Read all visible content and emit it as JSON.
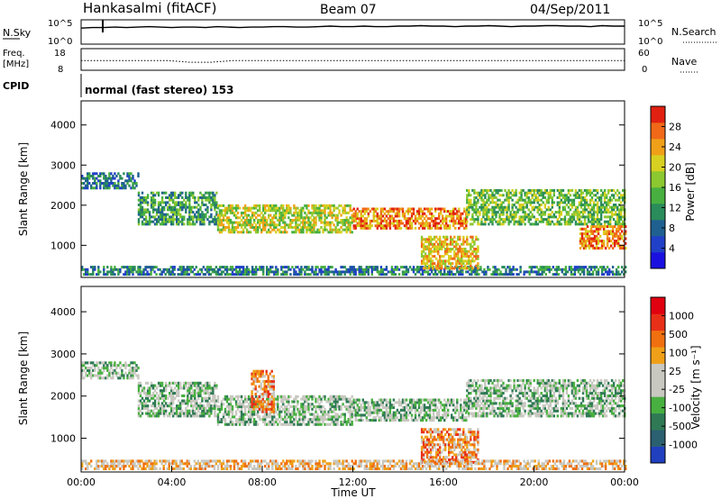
{
  "header": {
    "station": "Hankasalmi (fitACF)",
    "beam": "Beam 07",
    "date": "04/Sep/2011"
  },
  "left_labels": {
    "nsky": "N.Sky",
    "freq_line1": "Freq.",
    "freq_line2": "[MHz]",
    "cpid": "CPID"
  },
  "right_labels": {
    "nsearch": "N.Search",
    "nave": "Nave"
  },
  "cpid_text": "normal (fast stereo) 153",
  "chart_data": [
    {
      "type": "line",
      "panel": "noise",
      "yticks_left": [
        "10^5",
        "10^0"
      ],
      "yticks_right": [
        "10^5",
        "10^0"
      ],
      "series": [
        {
          "values": [
            3.3,
            3.4,
            3.4,
            3.5,
            3.4,
            3.5,
            3.6,
            3.5,
            3.4,
            3.5,
            3.5,
            3.4,
            3.6,
            3.5,
            3.4,
            3.5,
            3.5,
            3.6,
            3.6,
            3.5,
            3.5,
            3.6,
            3.7,
            3.6,
            3.6,
            3.7,
            3.6,
            3.6,
            3.7,
            3.7,
            3.8,
            3.7,
            3.7,
            3.6,
            3.7,
            3.7,
            3.8,
            3.7,
            3.6,
            3.7,
            3.7,
            3.8,
            3.8,
            3.7,
            3.7,
            3.6,
            3.8,
            3.7,
            3.7
          ]
        }
      ],
      "xlim": [
        0,
        24
      ]
    },
    {
      "type": "line",
      "panel": "frequency",
      "yticks_left": [
        "18",
        "8"
      ],
      "yticks_right": [
        "60",
        "0"
      ],
      "ylim_left": [
        8,
        18
      ],
      "ylim_right": [
        0,
        60
      ],
      "series": [
        {
          "values": [
            12.5,
            12.5,
            12.5,
            12.5,
            12.5,
            11.7,
            11.7,
            12.5,
            12.5,
            12.5,
            12.5,
            12.5,
            12.5,
            12.5,
            12.5,
            12.5,
            12.5,
            12.5,
            12.5,
            12.5,
            12.5,
            12.5,
            12.5,
            12.5,
            12.5,
            12.5
          ]
        }
      ],
      "xlim": [
        0,
        24
      ]
    },
    {
      "type": "heatmap",
      "panel": "power",
      "ylabel": "Slant Range [km]",
      "yticks": [
        "1000",
        "2000",
        "3000",
        "4000"
      ],
      "ylim": [
        200,
        4600
      ],
      "xlim": [
        0,
        24
      ],
      "colorbar": {
        "label": "Power [dB]",
        "ticks": [
          "28",
          "24",
          "20",
          "16",
          "12",
          "8",
          "4"
        ],
        "colors": [
          "#1a10e0",
          "#2040c8",
          "#1f6090",
          "#2a8c5a",
          "#48b040",
          "#8cc830",
          "#d8d020",
          "#f0a018",
          "#f06818",
          "#e02010"
        ]
      },
      "bands": [
        {
          "t": [
            0.0,
            2.5
          ],
          "r": [
            2400,
            2800
          ],
          "level": 3
        },
        {
          "t": [
            2.5,
            6.0
          ],
          "r": [
            1500,
            2300
          ],
          "level": 4
        },
        {
          "t": [
            6.0,
            12.0
          ],
          "r": [
            1300,
            2000
          ],
          "level": 6
        },
        {
          "t": [
            12.0,
            17.0
          ],
          "r": [
            1400,
            1900
          ],
          "level": 8
        },
        {
          "t": [
            17.0,
            24.0
          ],
          "r": [
            1500,
            2400
          ],
          "level": 5
        },
        {
          "t": [
            0.0,
            24.0
          ],
          "r": [
            250,
            450
          ],
          "level": 3
        },
        {
          "t": [
            15.0,
            17.5
          ],
          "r": [
            400,
            1200
          ],
          "level": 7
        },
        {
          "t": [
            22.0,
            24.0
          ],
          "r": [
            900,
            1500
          ],
          "level": 8
        }
      ]
    },
    {
      "type": "heatmap",
      "panel": "velocity",
      "ylabel": "Slant Range [km]",
      "yticks": [
        "1000",
        "2000",
        "3000",
        "4000"
      ],
      "ylim": [
        200,
        4600
      ],
      "xlim": [
        0,
        24
      ],
      "xticks": [
        "00:00",
        "04:00",
        "08:00",
        "12:00",
        "16:00",
        "20:00",
        "00:00"
      ],
      "xlabel": "Time UT",
      "colorbar": {
        "label": "Velocity [m s⁻¹]",
        "ticks": [
          "1000",
          "500",
          "100",
          "25",
          "-25",
          "-100",
          "-500",
          "-1000"
        ],
        "colors": [
          "#2040c0",
          "#2a6070",
          "#2f7a55",
          "#48b040",
          "#c8c8c0",
          "#c8c8c0",
          "#f0a018",
          "#f07010",
          "#e83018",
          "#e00010"
        ]
      },
      "bands": [
        {
          "t": [
            0.0,
            2.5
          ],
          "r": [
            2400,
            2800
          ],
          "level": 4
        },
        {
          "t": [
            2.5,
            6.0
          ],
          "r": [
            1500,
            2300
          ],
          "level": 4
        },
        {
          "t": [
            6.0,
            12.0
          ],
          "r": [
            1300,
            2000
          ],
          "level": 4
        },
        {
          "t": [
            12.0,
            17.0
          ],
          "r": [
            1400,
            1900
          ],
          "level": 4
        },
        {
          "t": [
            17.0,
            24.0
          ],
          "r": [
            1500,
            2400
          ],
          "level": 4
        },
        {
          "t": [
            15.0,
            17.5
          ],
          "r": [
            400,
            1200
          ],
          "level": 7
        },
        {
          "t": [
            7.5,
            8.5
          ],
          "r": [
            1600,
            2600
          ],
          "level": 7
        },
        {
          "t": [
            0.0,
            24.0
          ],
          "r": [
            250,
            450
          ],
          "level": 6
        }
      ]
    }
  ]
}
